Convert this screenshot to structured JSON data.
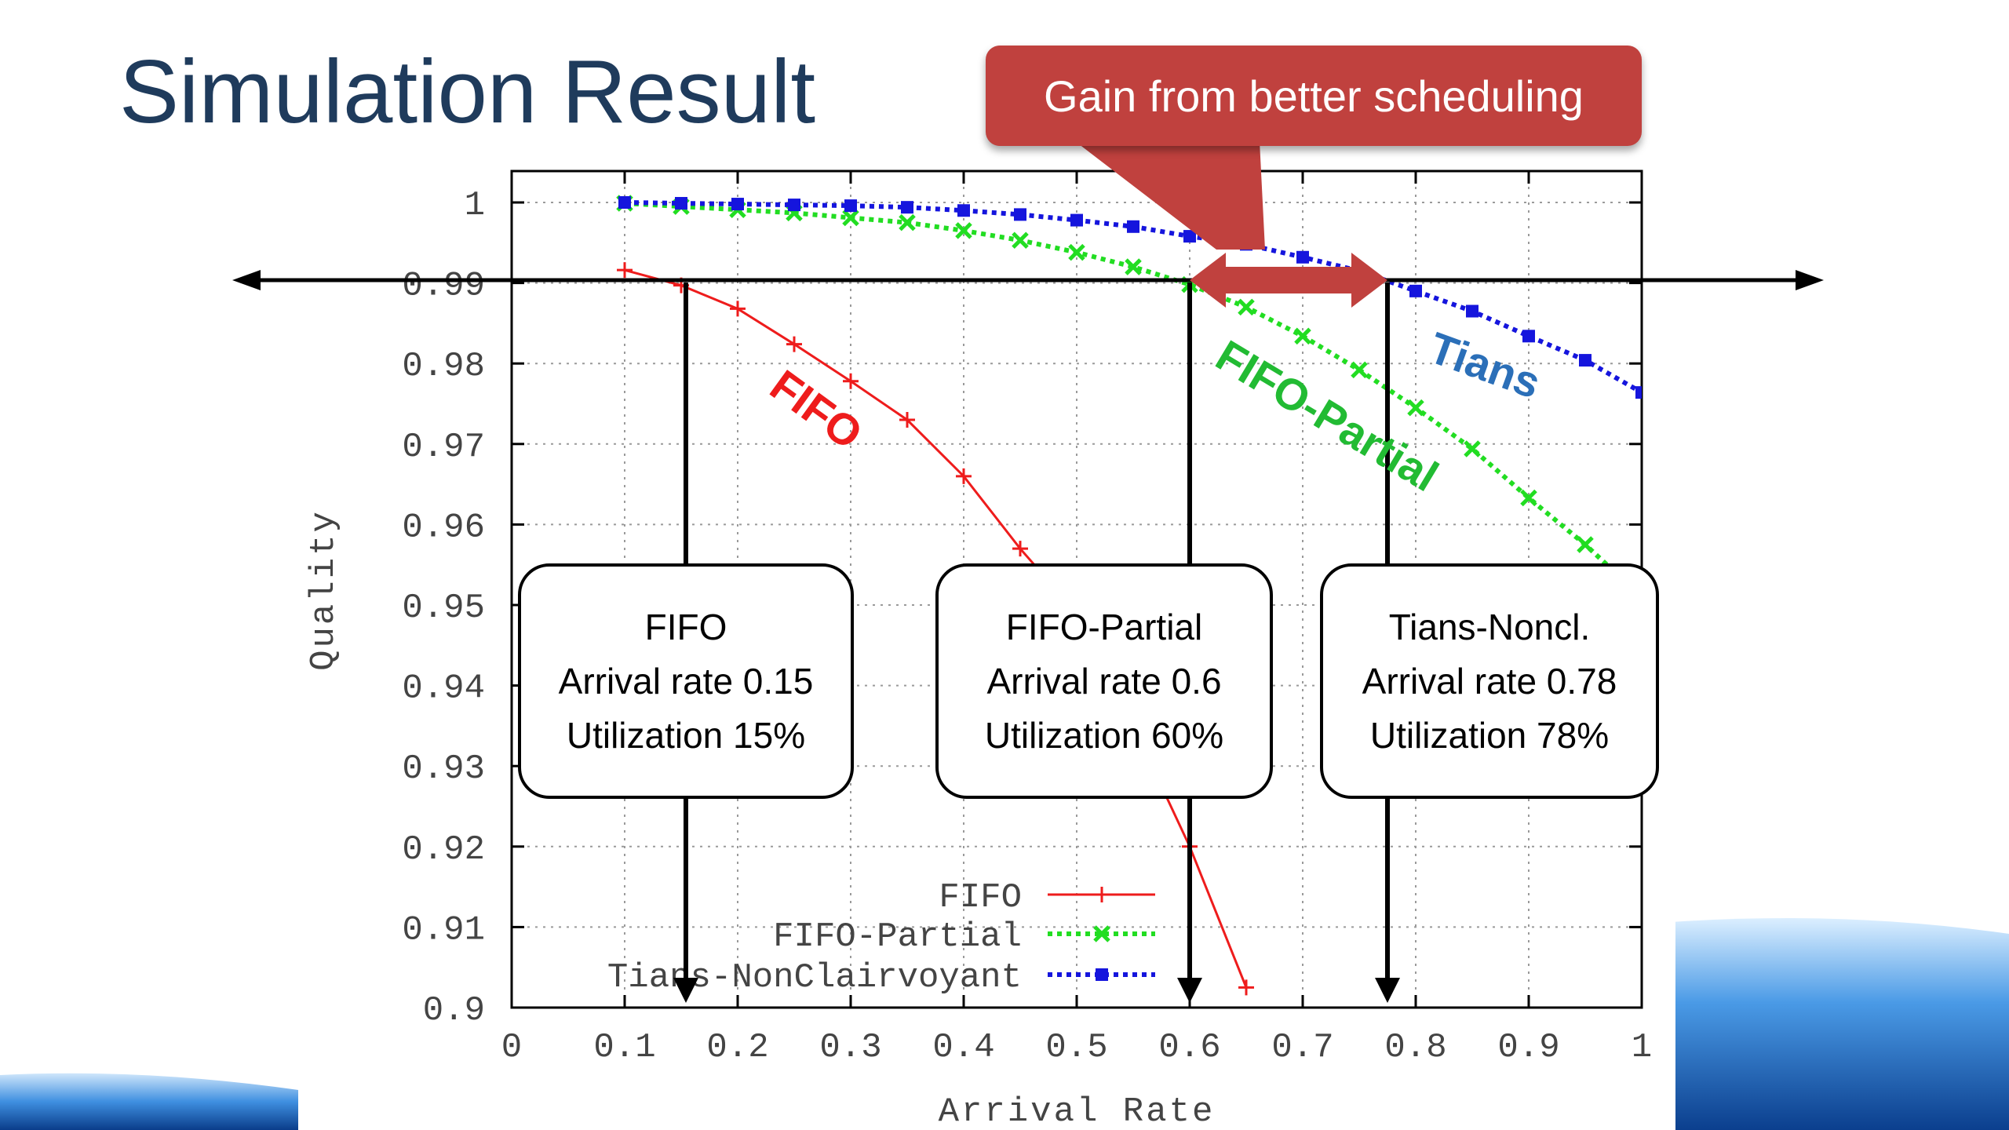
{
  "slide": {
    "title": "Simulation Result"
  },
  "banner": {
    "text": "Gain from better scheduling"
  },
  "curve_labels": {
    "fifo": "FIFO",
    "fifo_partial": "FIFO-Partial",
    "tians": "Tians"
  },
  "callouts": [
    {
      "title": "FIFO",
      "rate": "Arrival rate 0.15",
      "util": "Utilization 15%"
    },
    {
      "title": "FIFO-Partial",
      "rate": "Arrival rate 0.6",
      "util": "Utilization 60%"
    },
    {
      "title": "Tians-Noncl.",
      "rate": "Arrival rate 0.78",
      "util": "Utilization 78%"
    }
  ],
  "colors": {
    "fifo": "#ee1c1c",
    "fifo_partial": "#22dd22",
    "tians": "#1515dd",
    "title": "#1f3b5c",
    "banner": "#c0413e"
  },
  "chart_data": {
    "type": "line",
    "xlabel": "Arrival Rate",
    "ylabel": "Quality",
    "xlim": [
      0,
      1
    ],
    "ylim": [
      0.9,
      1
    ],
    "xticks": [
      "0",
      "0.1",
      "0.2",
      "0.3",
      "0.4",
      "0.5",
      "0.6",
      "0.7",
      "0.8",
      "0.9",
      "1"
    ],
    "yticks": [
      "0.9",
      "0.91",
      "0.92",
      "0.93",
      "0.94",
      "0.95",
      "0.96",
      "0.97",
      "0.98",
      "0.99",
      "1"
    ],
    "grid": true,
    "legend_position": "bottom-center",
    "threshold_y": 0.99,
    "series": [
      {
        "name": "FIFO",
        "color": "#ee1c1c",
        "style": "solid",
        "marker": "plus",
        "x": [
          0.1,
          0.15,
          0.2,
          0.25,
          0.3,
          0.35,
          0.4,
          0.45,
          0.5,
          0.55,
          0.6,
          0.65
        ],
        "y": [
          0.9916,
          0.9897,
          0.9868,
          0.9824,
          0.9778,
          0.973,
          0.966,
          0.957,
          0.949,
          0.935,
          0.92,
          0.9025
        ]
      },
      {
        "name": "FIFO-Partial",
        "color": "#22dd22",
        "style": "dotted",
        "marker": "x",
        "x": [
          0.1,
          0.15,
          0.2,
          0.25,
          0.3,
          0.35,
          0.4,
          0.45,
          0.5,
          0.55,
          0.6,
          0.65,
          0.7,
          0.75,
          0.8,
          0.85,
          0.9,
          0.95,
          1.0
        ],
        "y": [
          0.9999,
          0.9995,
          0.9991,
          0.9987,
          0.9981,
          0.9975,
          0.9965,
          0.9953,
          0.9938,
          0.992,
          0.9898,
          0.987,
          0.9834,
          0.9792,
          0.9745,
          0.9694,
          0.9633,
          0.9575,
          0.951
        ]
      },
      {
        "name": "Tians-NonClairvoyant",
        "color": "#1515dd",
        "style": "dotted",
        "marker": "square",
        "x": [
          0.1,
          0.15,
          0.2,
          0.25,
          0.3,
          0.35,
          0.4,
          0.45,
          0.5,
          0.55,
          0.6,
          0.65,
          0.7,
          0.75,
          0.8,
          0.85,
          0.9,
          0.95,
          1.0
        ],
        "y": [
          1.0,
          0.9999,
          0.9998,
          0.9997,
          0.9996,
          0.9994,
          0.999,
          0.9985,
          0.9978,
          0.997,
          0.9958,
          0.9948,
          0.9932,
          0.9915,
          0.989,
          0.9865,
          0.9834,
          0.9804,
          0.9764
        ]
      }
    ]
  }
}
